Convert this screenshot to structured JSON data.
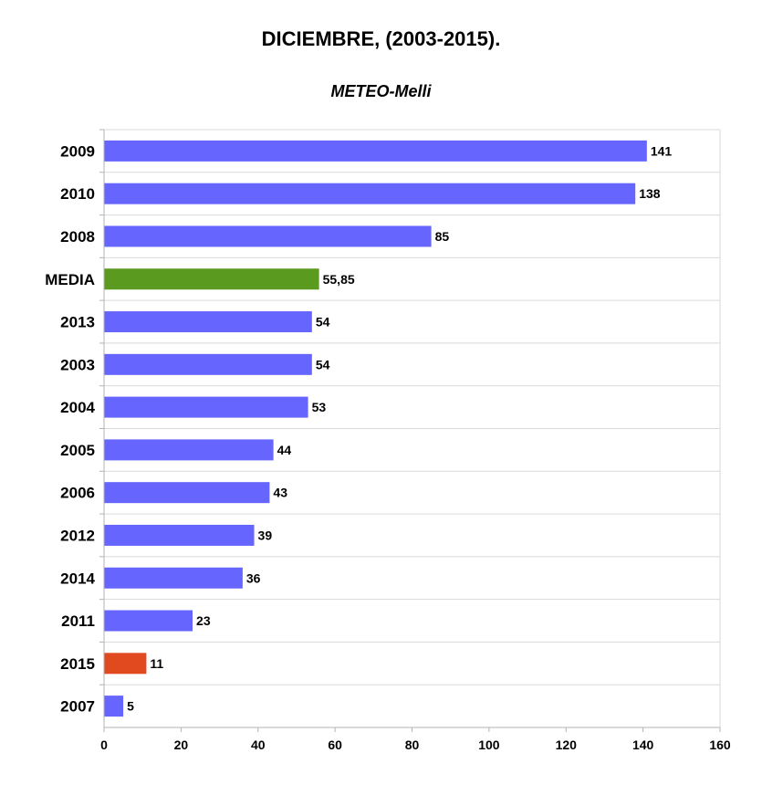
{
  "chart_data": {
    "type": "bar",
    "orientation": "horizontal",
    "title": "DICIEMBRE, (2003-2015).",
    "subtitle": "METEO-Melli",
    "categories": [
      "2009",
      "2010",
      "2008",
      "MEDIA",
      "2013",
      "2003",
      "2004",
      "2005",
      "2006",
      "2012",
      "2014",
      "2011",
      "2015",
      "2007"
    ],
    "values": [
      141,
      138,
      85,
      55.85,
      54,
      54,
      53,
      44,
      43,
      39,
      36,
      23,
      11,
      5
    ],
    "value_labels": [
      "141",
      "138",
      "85",
      "55,85",
      "54",
      "54",
      "53",
      "44",
      "43",
      "39",
      "36",
      "23",
      "11",
      "5"
    ],
    "colors": [
      "#6666ff",
      "#6666ff",
      "#6666ff",
      "#5a9a1f",
      "#6666ff",
      "#6666ff",
      "#6666ff",
      "#6666ff",
      "#6666ff",
      "#6666ff",
      "#6666ff",
      "#6666ff",
      "#e04a1e",
      "#6666ff"
    ],
    "xlim": [
      0,
      160
    ],
    "xticks": [
      0,
      20,
      40,
      60,
      80,
      100,
      120,
      140,
      160
    ],
    "grid": true,
    "legend": "none"
  }
}
